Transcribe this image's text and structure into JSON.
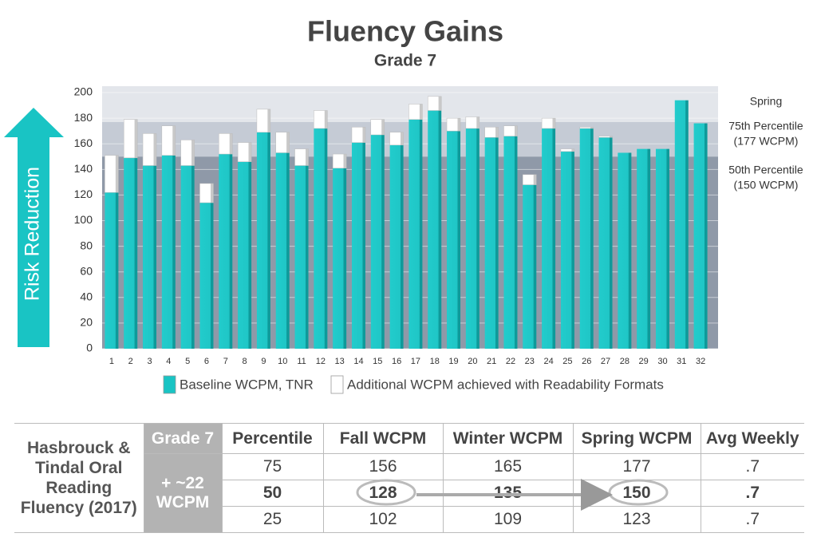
{
  "chart_data": {
    "type": "stacked_bar",
    "title": "Fluency Gains",
    "subtitle": "Grade 7",
    "annotation": "Risk Reduction",
    "categories": [
      "1",
      "2",
      "3",
      "4",
      "5",
      "6",
      "7",
      "8",
      "9",
      "10",
      "11",
      "12",
      "13",
      "14",
      "15",
      "16",
      "17",
      "18",
      "19",
      "20",
      "21",
      "22",
      "23",
      "24",
      "25",
      "26",
      "27",
      "28",
      "29",
      "30",
      "31",
      "32"
    ],
    "series": [
      {
        "name": "Baseline WCPM, TNR",
        "color": "#19c4c4",
        "values": [
          122,
          149,
          143,
          151,
          143,
          114,
          152,
          146,
          169,
          153,
          143,
          172,
          141,
          161,
          167,
          159,
          179,
          186,
          170,
          172,
          165,
          166,
          128,
          172,
          154,
          172,
          165,
          153,
          156,
          156,
          194,
          176
        ]
      },
      {
        "name": "Additional WCPM achieved with Readability Formats",
        "color": "#ffffff",
        "values": [
          29,
          30,
          25,
          23,
          20,
          15,
          16,
          15,
          18,
          16,
          13,
          14,
          11,
          12,
          12,
          10,
          12,
          11,
          10,
          9,
          8,
          8,
          8,
          8,
          2,
          1,
          1,
          0,
          0,
          0,
          0,
          0
        ]
      }
    ],
    "bands": [
      {
        "lines": [
          "Spring"
        ],
        "lower": 177,
        "color": "#e3e6eb"
      },
      {
        "lines": [
          "75th Percentile",
          "(177 WCPM)"
        ],
        "lower": 150,
        "color": "#c5cbd5"
      },
      {
        "lines": [
          "50th Percentile",
          "(150 WCPM)"
        ],
        "lower": 0,
        "color": "#8f99a8"
      }
    ],
    "ylim": [
      0,
      205
    ],
    "yticks": [
      0,
      20,
      40,
      60,
      80,
      100,
      120,
      140,
      160,
      180,
      200
    ]
  },
  "table": {
    "source": "Hasbrouck & Tindal Oral Reading Fluency (2017)",
    "grade": "Grade 7",
    "gain": "+ ~22 WCPM",
    "columns": [
      "Percentile",
      "Fall WCPM",
      "Winter WCPM",
      "Spring WCPM",
      "Avg Weekly"
    ],
    "rows": [
      [
        "75",
        "156",
        "165",
        "177",
        ".7"
      ],
      [
        "50",
        "128",
        "135",
        "150",
        ".7"
      ],
      [
        "25",
        "102",
        "109",
        "123",
        ".7"
      ]
    ]
  }
}
